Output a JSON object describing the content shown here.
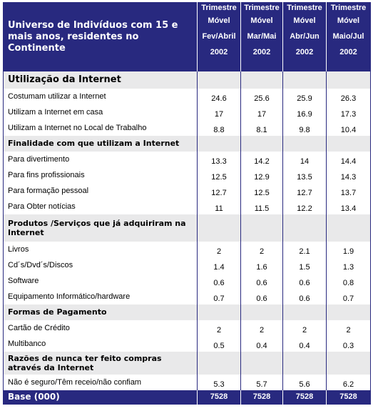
{
  "header": {
    "title": "Universo de Indivíduos com 15 e mais anos, residentes no Continente",
    "columns": [
      {
        "l1": "Trimestre",
        "l2": "Móvel",
        "l3": "Fev/Abril",
        "l4": "2002"
      },
      {
        "l1": "Trimestre",
        "l2": "Móvel",
        "l3": "Mar/Mai",
        "l4": "2002"
      },
      {
        "l1": "Trimestre",
        "l2": "Móvel",
        "l3": "Abr/Jun",
        "l4": "2002"
      },
      {
        "l1": "Trimestre",
        "l2": "Móvel",
        "l3": "Maio/Jul",
        "l4": "2002"
      }
    ]
  },
  "sections": [
    {
      "title": "Utilização da Internet",
      "rows": [
        {
          "label": "Costumam utilizar a Internet",
          "values": [
            "24.6",
            "25.6",
            "25.9",
            "26.3"
          ]
        },
        {
          "label": "Utilizam a Internet em casa",
          "values": [
            "17",
            "17",
            "16.9",
            "17.3"
          ]
        },
        {
          "label": "Utilizam a Internet no Local de Trabalho",
          "values": [
            "8.8",
            "8.1",
            "9.8",
            "10.4"
          ]
        }
      ]
    },
    {
      "title": "Finalidade com que utilizam a Internet",
      "rows": [
        {
          "label": "Para divertimento",
          "values": [
            "13.3",
            "14.2",
            "14",
            "14.4"
          ]
        },
        {
          "label": "Para fins profissionais",
          "values": [
            "12.5",
            "12.9",
            "13.5",
            "14.3"
          ]
        },
        {
          "label": "Para formação pessoal",
          "values": [
            "12.7",
            "12.5",
            "12.7",
            "13.7"
          ]
        },
        {
          "label": "Para Obter notícias",
          "values": [
            "11",
            "11.5",
            "12.2",
            "13.4"
          ]
        }
      ]
    },
    {
      "title": "Produtos /Serviços que já adquiriram na Internet",
      "rows": [
        {
          "label": "Livros",
          "values": [
            "2",
            "2",
            "2.1",
            "1.9"
          ]
        },
        {
          "label": "Cd´s/Dvd´s/Discos",
          "values": [
            "1.4",
            "1.6",
            "1.5",
            "1.3"
          ]
        },
        {
          "label": "Software",
          "values": [
            "0.6",
            "0.6",
            "0.6",
            "0.8"
          ]
        },
        {
          "label": "Equipamento Informático/hardware",
          "values": [
            "0.7",
            "0.6",
            "0.6",
            "0.7"
          ]
        }
      ]
    },
    {
      "title": "Formas de Pagamento",
      "rows": [
        {
          "label": "Cartão de Crédito",
          "values": [
            "2",
            "2",
            "2",
            "2"
          ]
        },
        {
          "label": "Multibanco",
          "values": [
            "0.5",
            "0.4",
            "0.4",
            "0.3"
          ]
        }
      ]
    },
    {
      "title": "Razões de nunca ter feito compras através da Internet",
      "rows": [
        {
          "label": "Não é seguro/Têm receio/não confiam",
          "values": [
            "5.3",
            "5.7",
            "5.6",
            "6.2"
          ]
        }
      ]
    }
  ],
  "footer": {
    "label": "Base (000)",
    "values": [
      "7528",
      "7528",
      "7528",
      "7528"
    ]
  },
  "colors": {
    "header_bg": "#28297f",
    "section_bg": "#e9e9ea",
    "text_light": "#ffffff"
  }
}
